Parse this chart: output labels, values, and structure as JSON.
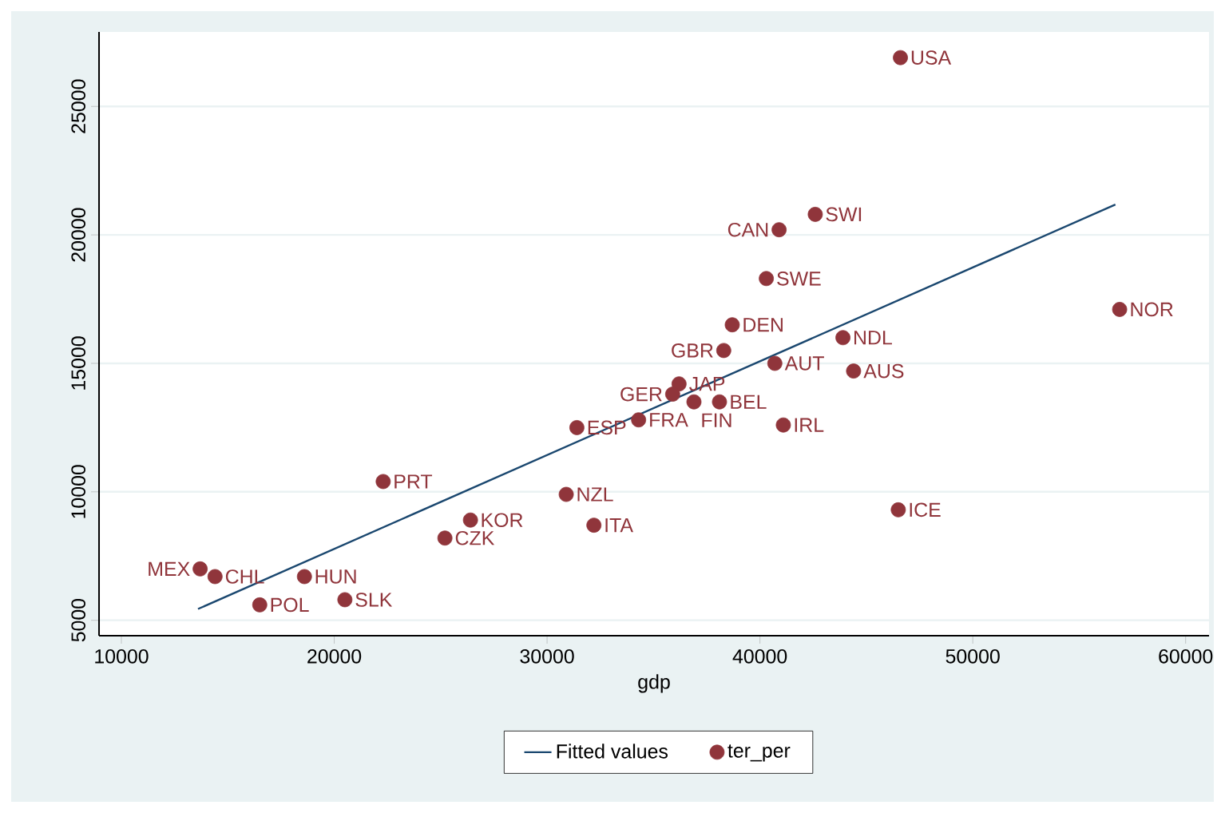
{
  "chart_data": {
    "type": "scatter",
    "xlabel": "gdp",
    "xlim": [
      8950,
      61100
    ],
    "ylim": [
      4400,
      27900
    ],
    "xticks": [
      10000,
      20000,
      30000,
      40000,
      50000,
      60000
    ],
    "yticks": [
      5000,
      10000,
      15000,
      20000,
      25000
    ],
    "grid": "y",
    "legend": "bottom",
    "series": [
      {
        "name": "Fitted values",
        "type": "line",
        "color": "#1a476f",
        "line_style": "solid",
        "marker": "none",
        "x": [
          13600,
          56700
        ],
        "values": [
          5440,
          21180
        ]
      },
      {
        "name": "ter_per",
        "marker": "circle",
        "color": "#90353b",
        "x": [
          46600,
          42600,
          40900,
          40300,
          56900,
          38700,
          43900,
          38300,
          40700,
          44400,
          36200,
          35900,
          36900,
          38100,
          41100,
          31400,
          34300,
          22300,
          30900,
          26400,
          32200,
          25200,
          46500,
          13700,
          14400,
          18600,
          16500,
          20500
        ],
        "values": [
          26900,
          20800,
          20200,
          18300,
          17100,
          16500,
          16000,
          15500,
          15000,
          14700,
          14200,
          13800,
          13500,
          13500,
          12600,
          12500,
          12800,
          10400,
          9900,
          8900,
          8700,
          8200,
          9300,
          7000,
          6700,
          6700,
          5600,
          5800
        ]
      }
    ],
    "annotations": [
      {
        "text": "USA",
        "x": 46600,
        "y": 26900
      },
      {
        "text": "SWI",
        "x": 42600,
        "y": 20800
      },
      {
        "text": "CAN",
        "x": 40900,
        "y": 20200
      },
      {
        "text": "SWE",
        "x": 40300,
        "y": 18300
      },
      {
        "text": "NOR",
        "x": 56900,
        "y": 17100
      },
      {
        "text": "DEN",
        "x": 38700,
        "y": 16500
      },
      {
        "text": "NDL",
        "x": 43900,
        "y": 16000
      },
      {
        "text": "GBR",
        "x": 38300,
        "y": 15500
      },
      {
        "text": "AUT",
        "x": 40700,
        "y": 15000
      },
      {
        "text": "AUS",
        "x": 44400,
        "y": 14700
      },
      {
        "text": "JAP",
        "x": 36200,
        "y": 14200
      },
      {
        "text": "GER",
        "x": 35900,
        "y": 13800
      },
      {
        "text": "FIN",
        "x": 36900,
        "y": 13500
      },
      {
        "text": "BEL",
        "x": 38100,
        "y": 13500
      },
      {
        "text": "IRL",
        "x": 41100,
        "y": 12600
      },
      {
        "text": "ESP",
        "x": 31400,
        "y": 12500
      },
      {
        "text": "FRA",
        "x": 34300,
        "y": 12800
      },
      {
        "text": "PRT",
        "x": 22300,
        "y": 10400
      },
      {
        "text": "NZL",
        "x": 30900,
        "y": 9900
      },
      {
        "text": "KOR",
        "x": 26400,
        "y": 8900
      },
      {
        "text": "ITA",
        "x": 32200,
        "y": 8700
      },
      {
        "text": "CZK",
        "x": 25200,
        "y": 8200
      },
      {
        "text": "ICE",
        "x": 46500,
        "y": 9300
      },
      {
        "text": "MEX",
        "x": 13700,
        "y": 7000
      },
      {
        "text": "CHL",
        "x": 14400,
        "y": 6700
      },
      {
        "text": "HUN",
        "x": 18600,
        "y": 6700
      },
      {
        "text": "POL",
        "x": 16500,
        "y": 5600
      },
      {
        "text": "SLK",
        "x": 20500,
        "y": 5800
      }
    ]
  }
}
